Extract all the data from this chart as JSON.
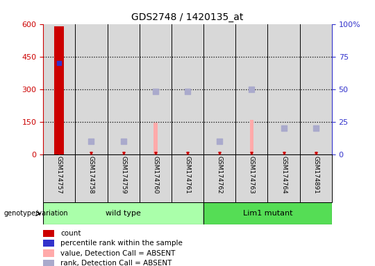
{
  "title": "GDS2748 / 1420135_at",
  "samples": [
    "GSM174757",
    "GSM174758",
    "GSM174759",
    "GSM174760",
    "GSM174761",
    "GSM174762",
    "GSM174763",
    "GSM174764",
    "GSM174891"
  ],
  "count_values": [
    590,
    0,
    0,
    0,
    0,
    0,
    0,
    0,
    0
  ],
  "rank_values": [
    70,
    0,
    0,
    0,
    0,
    0,
    0,
    0,
    0
  ],
  "absent_value": [
    0,
    2,
    2,
    145,
    2,
    2,
    158,
    2,
    5
  ],
  "absent_rank": [
    0,
    10,
    10,
    48,
    48,
    10,
    50,
    20,
    20
  ],
  "wild_type_count": 5,
  "lim1_mutant_count": 4,
  "ylim_left": [
    0,
    600
  ],
  "ylim_right": [
    0,
    100
  ],
  "yticks_left": [
    0,
    150,
    300,
    450,
    600
  ],
  "ytick_labels_left": [
    "0",
    "150",
    "300",
    "450",
    "600"
  ],
  "yticks_right": [
    0,
    25,
    50,
    75,
    100
  ],
  "ytick_labels_right": [
    "0",
    "25",
    "50",
    "75",
    "100%"
  ],
  "color_count": "#cc0000",
  "color_rank": "#3333cc",
  "color_absent_val": "#ffaaaa",
  "color_absent_rank": "#aaaacc",
  "color_wt_bg": "#aaffaa",
  "color_mut_bg": "#55dd55",
  "color_sample_bg": "#d8d8d8",
  "legend_items": [
    "count",
    "percentile rank within the sample",
    "value, Detection Call = ABSENT",
    "rank, Detection Call = ABSENT"
  ],
  "legend_colors": [
    "#cc0000",
    "#3333cc",
    "#ffaaaa",
    "#aaaacc"
  ]
}
